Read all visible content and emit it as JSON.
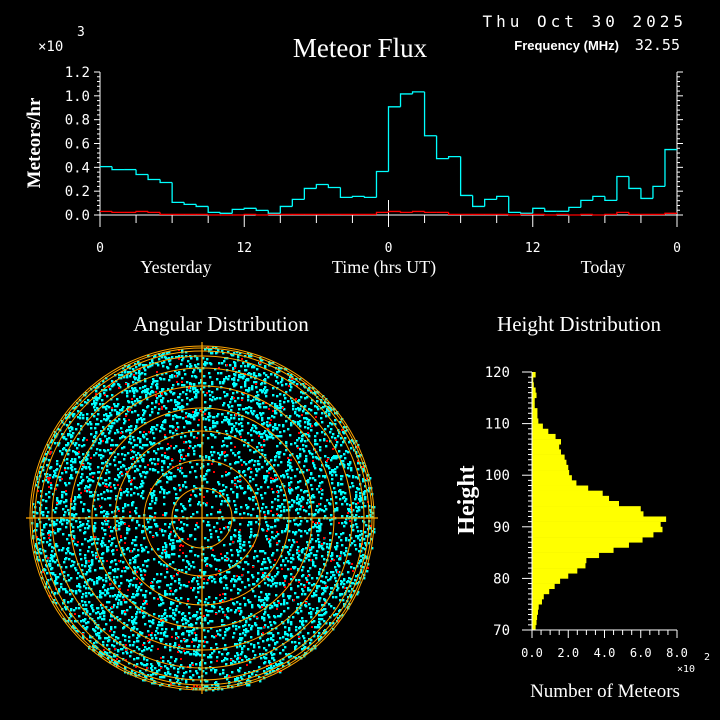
{
  "header": {
    "date": "Thu Oct 30 2025",
    "frequency_label": "Frequency (MHz)",
    "frequency_value": "32.55"
  },
  "colors": {
    "background": "#000000",
    "flux_series": "#00ffff",
    "flux_secondary": "#ff0000",
    "polar_points": "#00ffff",
    "polar_points_secondary": "#ff0000",
    "polar_grid": "#ffa500",
    "height_bars": "#ffff00",
    "axes": "#ffffff"
  },
  "chart_data": [
    {
      "type": "line",
      "title": "Meteor Flux",
      "ylabel": "Meteors/hr",
      "xlabel": "Time (hrs UT)",
      "y_multiplier": "×10",
      "y_multiplier_exp": "3",
      "ylim": [
        0,
        1.2
      ],
      "yticks": [
        "0.0",
        "0.2",
        "0.4",
        "0.6",
        "0.8",
        "1.0",
        "1.2"
      ],
      "xticks": [
        "0",
        "12",
        "0",
        "12",
        "0"
      ],
      "day_labels": [
        "Yesterday",
        "Today"
      ],
      "xlim_hours": [
        0,
        48
      ],
      "step": true,
      "series": [
        {
          "values": [
            0.406,
            0.381,
            0.381,
            0.34,
            0.298,
            0.273,
            0.106,
            0.089,
            0.072,
            0.022,
            0.014,
            0.047,
            0.056,
            0.039,
            0.014,
            0.072,
            0.131,
            0.223,
            0.256,
            0.231,
            0.148,
            0.156,
            0.148,
            0.365,
            0.908,
            1.016,
            1.033,
            0.665,
            0.473,
            0.49,
            0.164,
            0.072,
            0.131,
            0.156,
            0.022,
            0.014,
            0.056,
            0.031,
            0.031,
            0.064,
            0.123,
            0.156,
            0.123,
            0.323,
            0.223,
            0.139,
            0.24,
            0.549
          ]
        },
        {
          "values": [
            0.03,
            0.022,
            0.022,
            0.03,
            0.022,
            0.005,
            0.005,
            0.005,
            0.005,
            0,
            0,
            0,
            0.005,
            0,
            0.005,
            0.005,
            0.005,
            0.005,
            0.005,
            0.005,
            0.005,
            0.005,
            0.005,
            0.022,
            0.03,
            0.022,
            0.03,
            0.022,
            0.022,
            0.005,
            0.005,
            0.005,
            0.005,
            0.005,
            0,
            0.005,
            0.005,
            0,
            0.005,
            0,
            0.005,
            0,
            0.005,
            0.022,
            0.005,
            0.005,
            0.005,
            0.014
          ]
        }
      ]
    },
    {
      "type": "scatter",
      "title": "Angular Distribution",
      "projection": "polar",
      "grid": "concentric circles with crosshair"
    },
    {
      "type": "bar",
      "orientation": "horizontal",
      "title": "Height Distribution",
      "ylabel": "Height",
      "xlabel": "Number of Meteors",
      "x_multiplier": "×10",
      "x_multiplier_exp": "2",
      "xlim": [
        0,
        8.0
      ],
      "ylim": [
        70,
        120
      ],
      "xticks": [
        "0.0",
        "2.0",
        "4.0",
        "6.0",
        "8.0"
      ],
      "yticks": [
        "70",
        "80",
        "90",
        "100",
        "110",
        "120"
      ],
      "bin_heights": [
        70,
        71,
        72,
        73,
        74,
        75,
        76,
        77,
        78,
        79,
        80,
        81,
        82,
        83,
        84,
        85,
        86,
        87,
        88,
        89,
        90,
        91,
        92,
        93,
        94,
        95,
        96,
        97,
        98,
        99,
        100,
        101,
        102,
        103,
        104,
        105,
        106,
        107,
        108,
        109,
        110,
        111,
        112,
        113,
        114,
        115,
        116,
        117,
        118,
        119
      ],
      "values": [
        0.2,
        0.25,
        0.28,
        0.33,
        0.37,
        0.55,
        0.65,
        0.95,
        1.25,
        1.55,
        2.0,
        2.5,
        2.95,
        3.0,
        3.7,
        4.5,
        5.35,
        6.1,
        6.7,
        7.2,
        7.1,
        7.4,
        6.15,
        6.0,
        4.8,
        4.25,
        3.9,
        3.1,
        2.45,
        2.2,
        2.05,
        2.0,
        1.9,
        1.8,
        1.6,
        1.5,
        1.6,
        1.3,
        0.9,
        0.6,
        0.35,
        0.3,
        0.3,
        0.15,
        0.15,
        0.25,
        0.2,
        0.1,
        0.07,
        0.2
      ]
    }
  ]
}
